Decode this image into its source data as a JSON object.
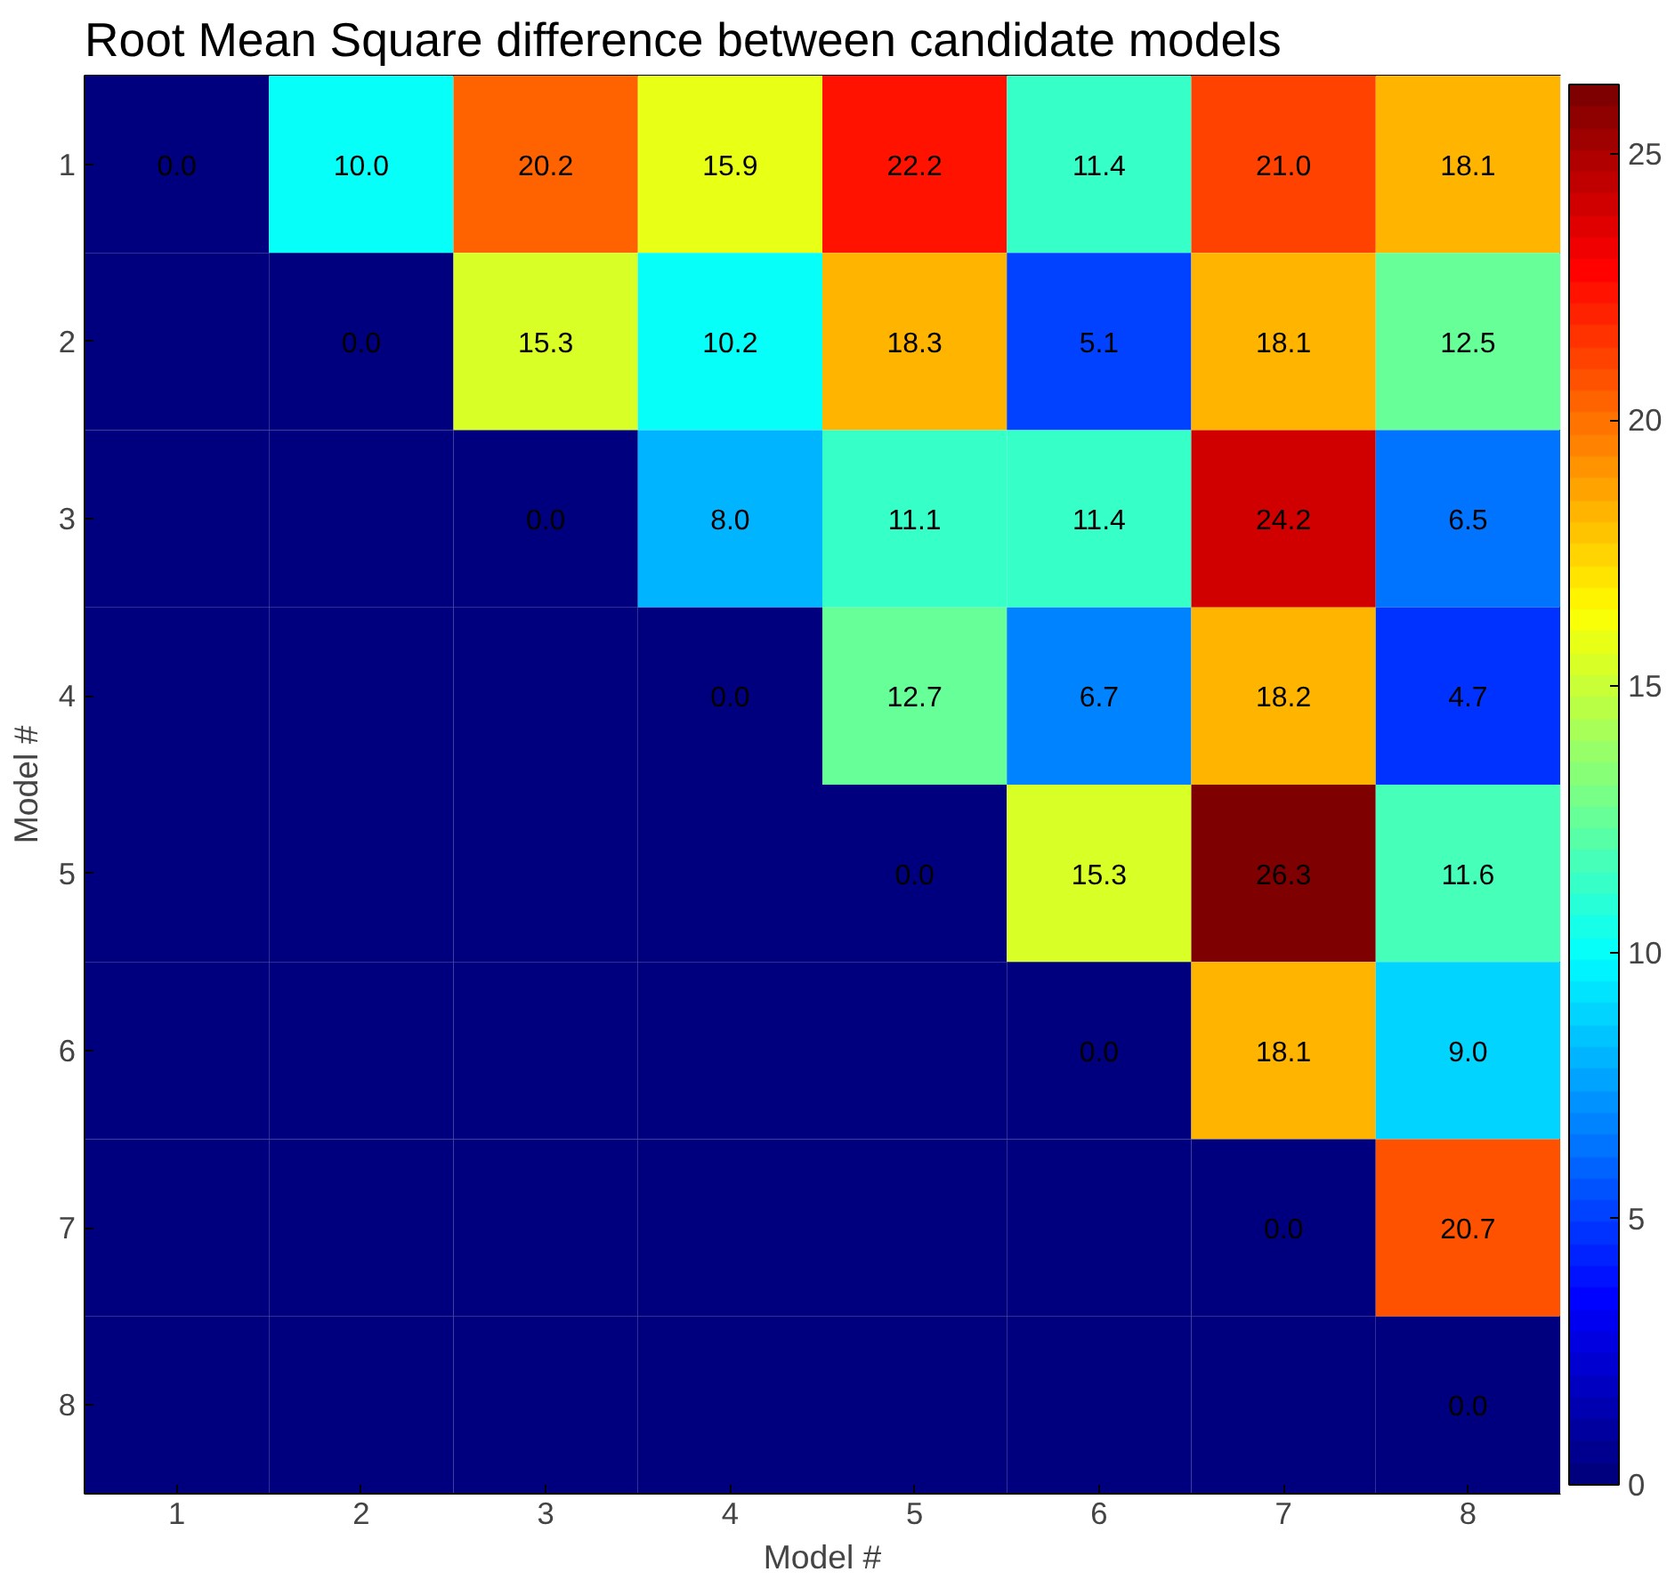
{
  "chart_data": {
    "type": "heatmap",
    "title": "Root Mean Square difference between candidate models",
    "xlabel": "Model #",
    "ylabel": "Model #",
    "categories": [
      "1",
      "2",
      "3",
      "4",
      "5",
      "6",
      "7",
      "8"
    ],
    "y_categories": [
      "1",
      "2",
      "3",
      "4",
      "5",
      "6",
      "7",
      "8"
    ],
    "cells": [
      [
        0.0,
        10.0,
        20.2,
        15.9,
        22.2,
        11.4,
        21.0,
        18.1
      ],
      [
        0,
        0.0,
        15.3,
        10.2,
        18.3,
        5.1,
        18.1,
        12.5
      ],
      [
        0,
        0,
        0.0,
        8.0,
        11.1,
        11.4,
        24.2,
        6.5
      ],
      [
        0,
        0,
        0,
        0.0,
        12.7,
        6.7,
        18.2,
        4.7
      ],
      [
        0,
        0,
        0,
        0,
        0.0,
        15.3,
        26.3,
        11.6
      ],
      [
        0,
        0,
        0,
        0,
        0,
        0.0,
        18.1,
        9.0
      ],
      [
        0,
        0,
        0,
        0,
        0,
        0,
        0.0,
        20.7
      ],
      [
        0,
        0,
        0,
        0,
        0,
        0,
        0,
        0.0
      ]
    ],
    "cell_labels": [
      [
        "0.0",
        "10.0",
        "20.2",
        "15.9",
        "22.2",
        "11.4",
        "21.0",
        "18.1"
      ],
      [
        null,
        "0.0",
        "15.3",
        "10.2",
        "18.3",
        "5.1",
        "18.1",
        "12.5"
      ],
      [
        null,
        null,
        "0.0",
        "8.0",
        "11.1",
        "11.4",
        "24.2",
        "6.5"
      ],
      [
        null,
        null,
        null,
        "0.0",
        "12.7",
        "6.7",
        "18.2",
        "4.7"
      ],
      [
        null,
        null,
        null,
        null,
        "0.0",
        "15.3",
        "26.3",
        "11.6"
      ],
      [
        null,
        null,
        null,
        null,
        null,
        "0.0",
        "18.1",
        "9.0"
      ],
      [
        null,
        null,
        null,
        null,
        null,
        null,
        "0.0",
        "20.7"
      ],
      [
        null,
        null,
        null,
        null,
        null,
        null,
        null,
        "0.0"
      ]
    ],
    "clim": [
      0,
      26.3
    ],
    "cticks": [
      0,
      5,
      10,
      15,
      20,
      25
    ],
    "grid": false
  }
}
